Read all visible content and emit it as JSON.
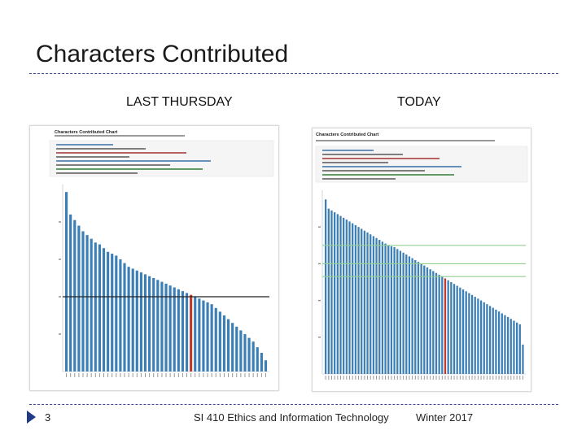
{
  "slide": {
    "title": "Characters Contributed",
    "left_label": "LAST THURSDAY",
    "right_label": "TODAY",
    "page_number": "3",
    "course": "SI 410 Ethics and Information Technology",
    "term": "Winter 2017"
  },
  "panels": {
    "left": {
      "heading": "Characters Contributed Chart",
      "code_lines": 8,
      "bar_color": "#3b7fb6",
      "highlight_color": "#c0392b",
      "median_line_color": "#222222",
      "percentile_line_color": "#8fcf8f"
    },
    "right": {
      "heading": "Characters Contributed Chart",
      "code_lines": 8,
      "bar_color": "#3b7fb6",
      "highlight_color": "#c0392b",
      "percentile_line_color": "#8fcf8f"
    }
  },
  "chart_data": [
    {
      "type": "bar",
      "title": "Characters Contributed Chart",
      "values": [
        9.6,
        8.4,
        8.1,
        7.8,
        7.5,
        7.3,
        7.1,
        6.9,
        6.8,
        6.6,
        6.4,
        6.3,
        6.2,
        6.0,
        5.8,
        5.6,
        5.5,
        5.4,
        5.3,
        5.2,
        5.1,
        5.0,
        4.9,
        4.8,
        4.7,
        4.6,
        4.5,
        4.4,
        4.3,
        4.2,
        4.1,
        4.0,
        3.9,
        3.8,
        3.7,
        3.6,
        3.4,
        3.2,
        3.0,
        2.8,
        2.6,
        2.4,
        2.2,
        2.0,
        1.8,
        1.6,
        1.3,
        1.0,
        0.6
      ],
      "highlight_index": 30,
      "median_line": 4.0,
      "percentile_lines": [],
      "ylim": [
        0,
        10
      ]
    },
    {
      "type": "bar",
      "title": "Characters Contributed Chart",
      "values": [
        9.5,
        9.0,
        8.9,
        8.8,
        8.7,
        8.6,
        8.5,
        8.4,
        8.3,
        8.2,
        8.1,
        8.0,
        7.9,
        7.8,
        7.7,
        7.6,
        7.5,
        7.4,
        7.3,
        7.2,
        7.1,
        7.0,
        6.95,
        6.9,
        6.8,
        6.7,
        6.6,
        6.5,
        6.4,
        6.3,
        6.2,
        6.1,
        6.0,
        5.9,
        5.8,
        5.7,
        5.6,
        5.5,
        5.4,
        5.3,
        5.2,
        5.1,
        5.0,
        4.9,
        4.8,
        4.7,
        4.6,
        4.5,
        4.4,
        4.3,
        4.2,
        4.1,
        4.0,
        3.9,
        3.8,
        3.7,
        3.6,
        3.5,
        3.4,
        3.3,
        3.2,
        3.1,
        3.0,
        2.9,
        2.8,
        2.7,
        1.6
      ],
      "highlight_index": 40,
      "median_line": null,
      "percentile_lines": [
        7.0,
        6.0,
        5.3
      ],
      "ylim": [
        0,
        10
      ]
    }
  ]
}
